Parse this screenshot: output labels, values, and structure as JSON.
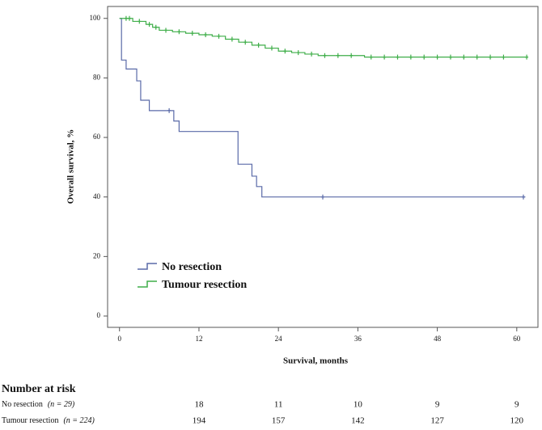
{
  "chart_data": {
    "type": "step",
    "y_axis_label": "Overall survival, %",
    "x_axis_label": "Survival, months",
    "xlim": [
      -1.8,
      63.2
    ],
    "ylim": [
      -3.8,
      104
    ],
    "xticks": [
      0,
      12,
      24,
      36,
      48,
      60
    ],
    "yticks": [
      0,
      20,
      40,
      60,
      80,
      100
    ],
    "series": [
      {
        "name": "No resection",
        "color": "#5a6aa8",
        "x": [
          0,
          0.3,
          1,
          2.6,
          3.2,
          4.5,
          8.2,
          9,
          17.9,
          20,
          20.7,
          21.5,
          61.3
        ],
        "values": [
          100,
          86,
          83,
          79,
          72.5,
          69,
          65.5,
          62,
          51,
          47,
          43.5,
          40,
          40
        ],
        "censored_x": [
          7.5,
          30.7,
          61
        ],
        "censored_values": [
          69,
          40,
          40
        ]
      },
      {
        "name": "Tumour resection",
        "color": "#3fae49",
        "x": [
          0,
          2,
          4,
          5,
          6,
          8,
          10,
          12,
          14,
          16,
          18,
          20,
          22,
          24,
          26,
          28,
          30,
          34,
          37,
          61.5
        ],
        "values": [
          100,
          99,
          98,
          97,
          96,
          95.5,
          95,
          94.5,
          94,
          93,
          92,
          91,
          90,
          89,
          88.5,
          88,
          87.5,
          87.5,
          87,
          87
        ],
        "censored_x": [
          1,
          1.5,
          3,
          4.5,
          5.5,
          7,
          9,
          11,
          13,
          15,
          17,
          19,
          21,
          23,
          25,
          27,
          29,
          31,
          33,
          35,
          38,
          40,
          42,
          44,
          46,
          48,
          50,
          52,
          54,
          56,
          58,
          61.5
        ],
        "censored_values": [
          100,
          100,
          99,
          98,
          97,
          96,
          95.5,
          95,
          94.5,
          94,
          93,
          92,
          91,
          90,
          89,
          88.5,
          88,
          87.5,
          87.5,
          87.5,
          87,
          87,
          87,
          87,
          87,
          87,
          87,
          87,
          87,
          87,
          87,
          87
        ]
      }
    ],
    "risk_table": {
      "title": "Number at risk",
      "rows": [
        {
          "label": "No resection",
          "n": "(n = 29)",
          "counts": [
            18,
            11,
            10,
            9,
            9
          ]
        },
        {
          "label": "Tumour resection",
          "n": "(n = 224)",
          "counts": [
            194,
            157,
            142,
            127,
            120
          ]
        }
      ]
    }
  }
}
